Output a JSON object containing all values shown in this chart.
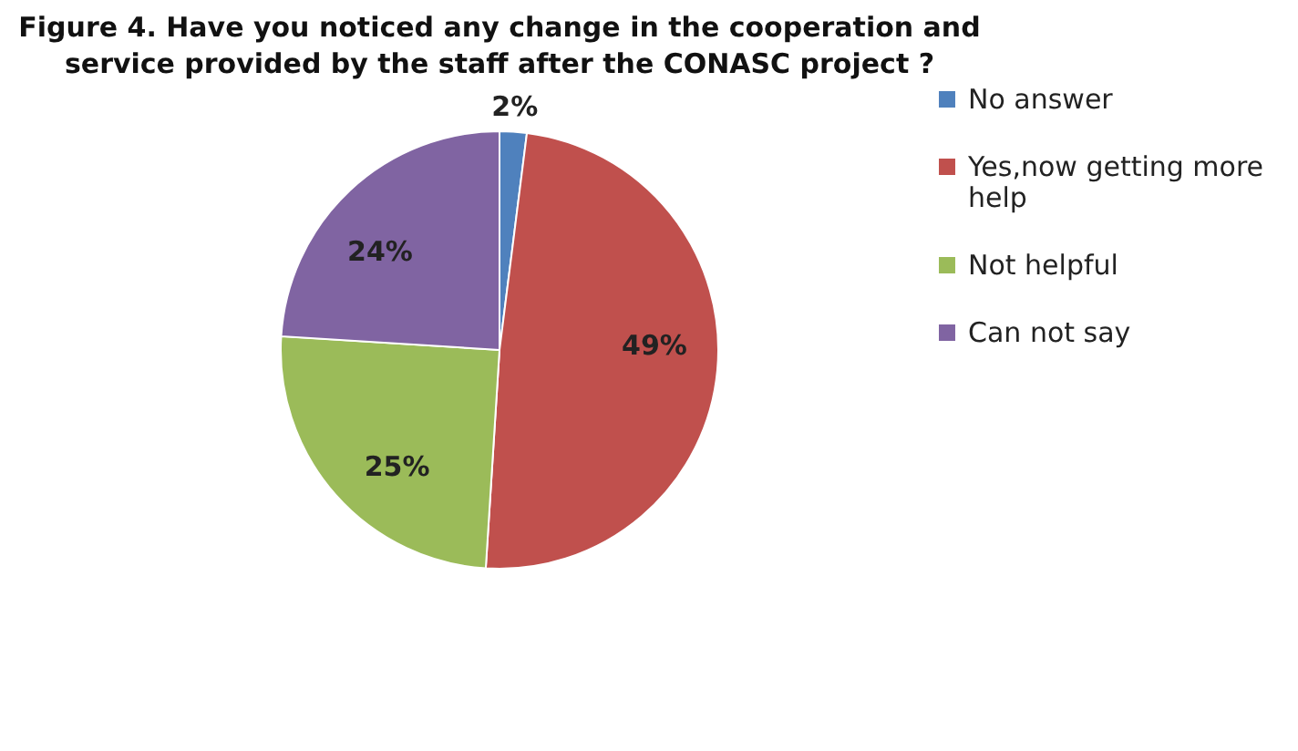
{
  "chart_data": {
    "type": "pie",
    "title": "Figure 4. Have you noticed any change in the cooperation and service provided by the staff after the CONASC project ?",
    "categories": [
      "No answer",
      "Yes,now getting more help",
      "Not helpful",
      "Can not say"
    ],
    "values": [
      2,
      49,
      25,
      24
    ],
    "colors": [
      "#4f81bd",
      "#c0504d",
      "#9bbb59",
      "#8064a2"
    ],
    "value_labels": [
      "2%",
      "49%",
      "25%",
      "24%"
    ],
    "legend": "right"
  }
}
